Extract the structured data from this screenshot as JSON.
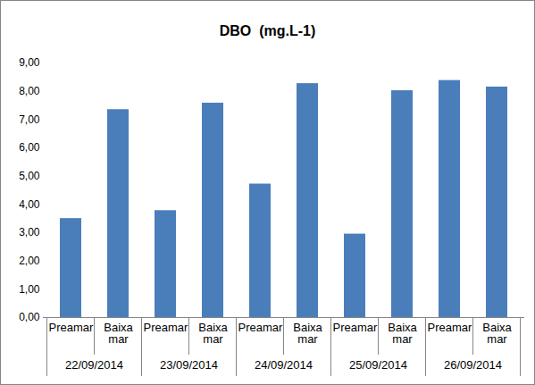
{
  "chart_data": {
    "type": "bar",
    "title": "DBO  (mg.L-1)",
    "categories": [
      "Preamar",
      "Baixa mar",
      "Preamar",
      "Baixa mar",
      "Preamar",
      "Baixa mar",
      "Preamar",
      "Baixa mar",
      "Preamar",
      "Baixa mar"
    ],
    "groups": [
      "22/09/2014",
      "23/09/2014",
      "24/09/2014",
      "25/09/2014",
      "26/09/2014"
    ],
    "values": [
      3.5,
      7.35,
      3.78,
      7.58,
      4.72,
      8.27,
      2.95,
      8.02,
      8.38,
      8.15
    ],
    "color": "#4a7ebb",
    "ylim": [
      0,
      9
    ],
    "yticks": [
      {
        "value": 0,
        "label": "0,00"
      },
      {
        "value": 1,
        "label": "1,00"
      },
      {
        "value": 2,
        "label": "2,00"
      },
      {
        "value": 3,
        "label": "3,00"
      },
      {
        "value": 4,
        "label": "4,00"
      },
      {
        "value": 5,
        "label": "5,00"
      },
      {
        "value": 6,
        "label": "6,00"
      },
      {
        "value": 7,
        "label": "7,00"
      },
      {
        "value": 8,
        "label": "8,00"
      },
      {
        "value": 9,
        "label": "9,00"
      }
    ],
    "grid": false
  }
}
